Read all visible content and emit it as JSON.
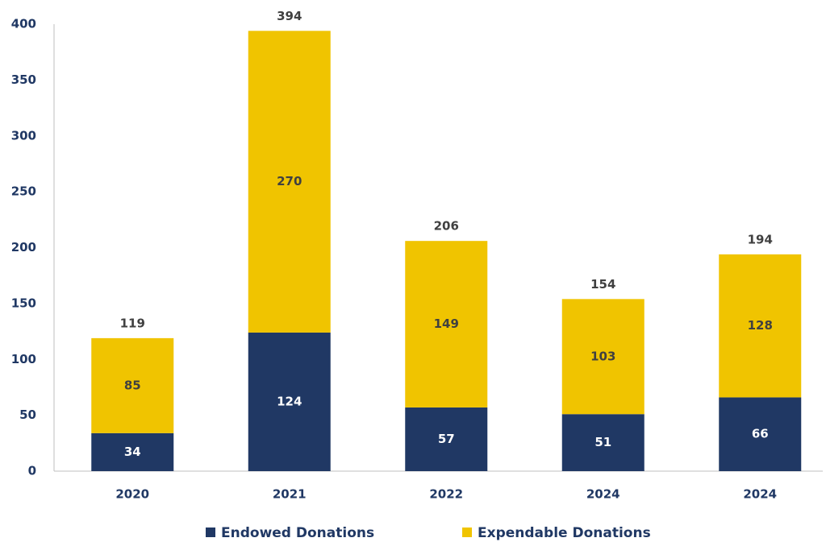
{
  "chart_data": {
    "type": "stacked_bar",
    "categories": [
      "2020",
      "2021",
      "2022",
      "2024",
      "2024"
    ],
    "series": [
      {
        "name": "Endowed Donations",
        "color": "#203864",
        "values": [
          34,
          124,
          57,
          51,
          66
        ]
      },
      {
        "name": "Expendable Donations",
        "color": "#f0c400",
        "values": [
          85,
          270,
          149,
          103,
          128
        ]
      }
    ],
    "totals": [
      119,
      394,
      206,
      154,
      194
    ],
    "ylim": [
      0,
      400
    ],
    "yticks": [
      0,
      50,
      100,
      150,
      200,
      250,
      300,
      350,
      400
    ],
    "grid": false,
    "legend": "bottom"
  }
}
